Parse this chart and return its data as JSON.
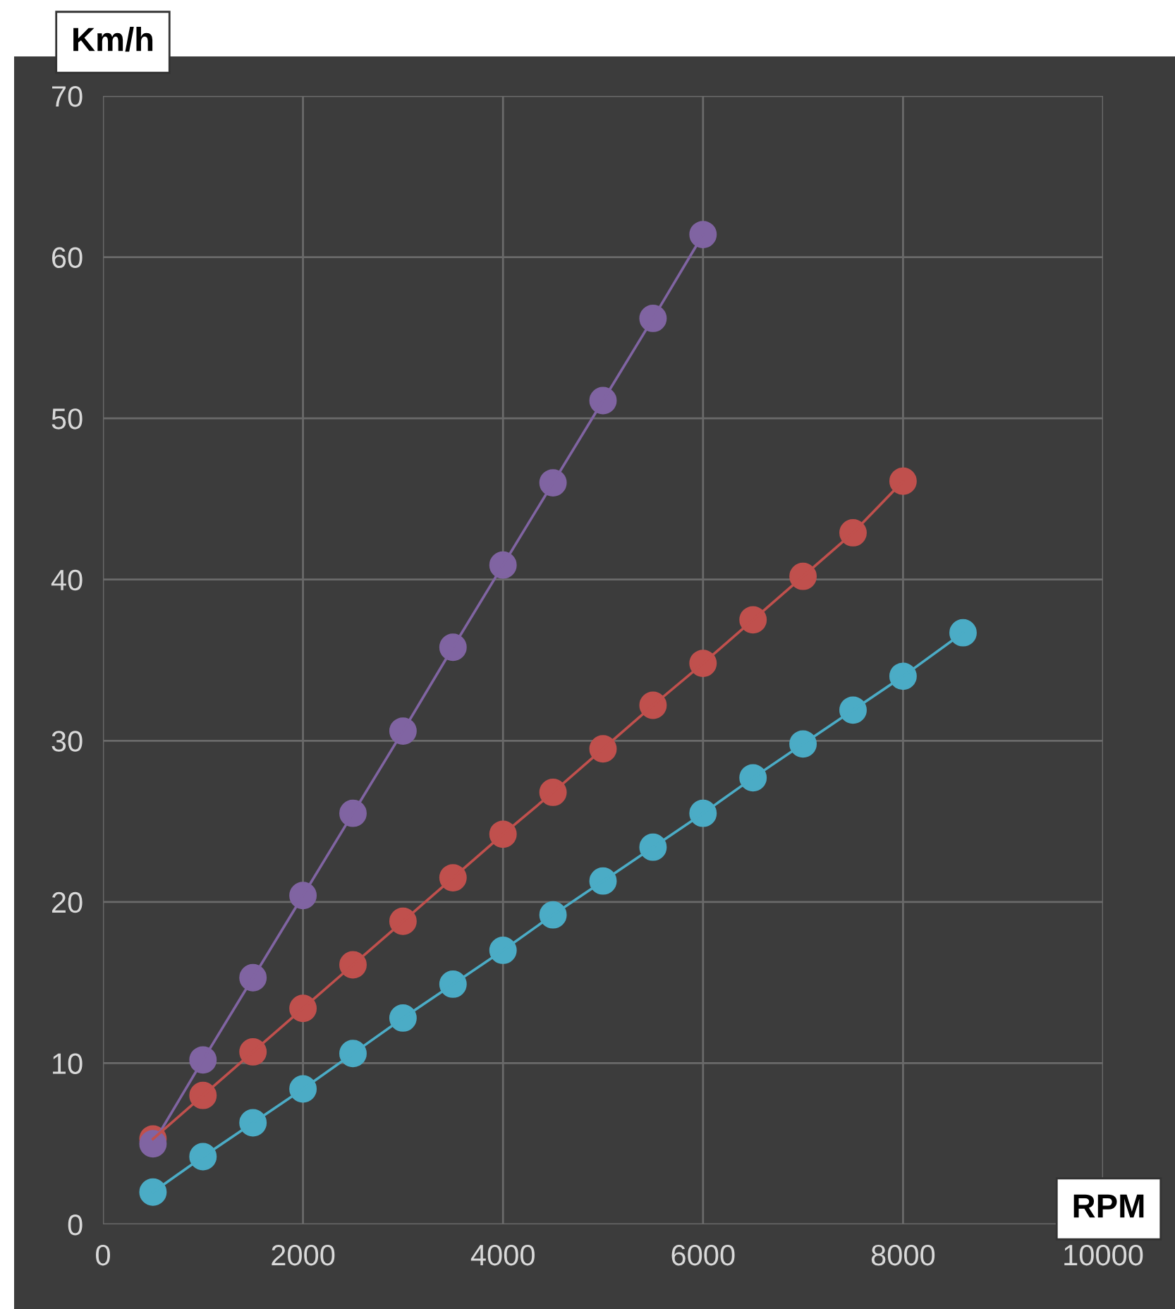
{
  "chart_data": {
    "type": "line",
    "ylabel": "Km/h",
    "xlabel": "RPM",
    "xlim": [
      0,
      10000
    ],
    "xticks": [
      0,
      2000,
      4000,
      6000,
      8000,
      10000
    ],
    "ylim": [
      0,
      70
    ],
    "yticks": [
      0,
      10,
      20,
      30,
      40,
      50,
      60,
      70
    ],
    "grid": true,
    "marker": "circle",
    "line_style": "solid",
    "series": [
      {
        "color": "#8064a2",
        "x": [
          500,
          1000,
          1500,
          2000,
          2500,
          3000,
          3500,
          4000,
          4500,
          5000,
          5500,
          6000
        ],
        "values": [
          5.0,
          10.2,
          15.3,
          20.4,
          25.5,
          30.6,
          35.8,
          40.9,
          46.0,
          51.1,
          56.2,
          61.4
        ]
      },
      {
        "color": "#c0504d",
        "x": [
          500,
          1000,
          1500,
          2000,
          2500,
          3000,
          3500,
          4000,
          4500,
          5000,
          5500,
          6000,
          6500,
          7000,
          7500,
          8000
        ],
        "values": [
          5.3,
          8.0,
          10.7,
          13.4,
          16.1,
          18.8,
          21.5,
          24.2,
          26.8,
          29.5,
          32.2,
          34.8,
          37.5,
          40.2,
          42.9,
          46.1
        ]
      },
      {
        "color": "#4bacc6",
        "x": [
          500,
          1000,
          1500,
          2000,
          2500,
          3000,
          3500,
          4000,
          4500,
          5000,
          5500,
          6000,
          6500,
          7000,
          7500,
          8000,
          8600
        ],
        "values": [
          2.0,
          4.2,
          6.3,
          8.4,
          10.6,
          12.8,
          14.9,
          17.0,
          19.2,
          21.3,
          23.4,
          25.5,
          27.7,
          29.8,
          31.9,
          34.0,
          36.7
        ]
      }
    ]
  }
}
